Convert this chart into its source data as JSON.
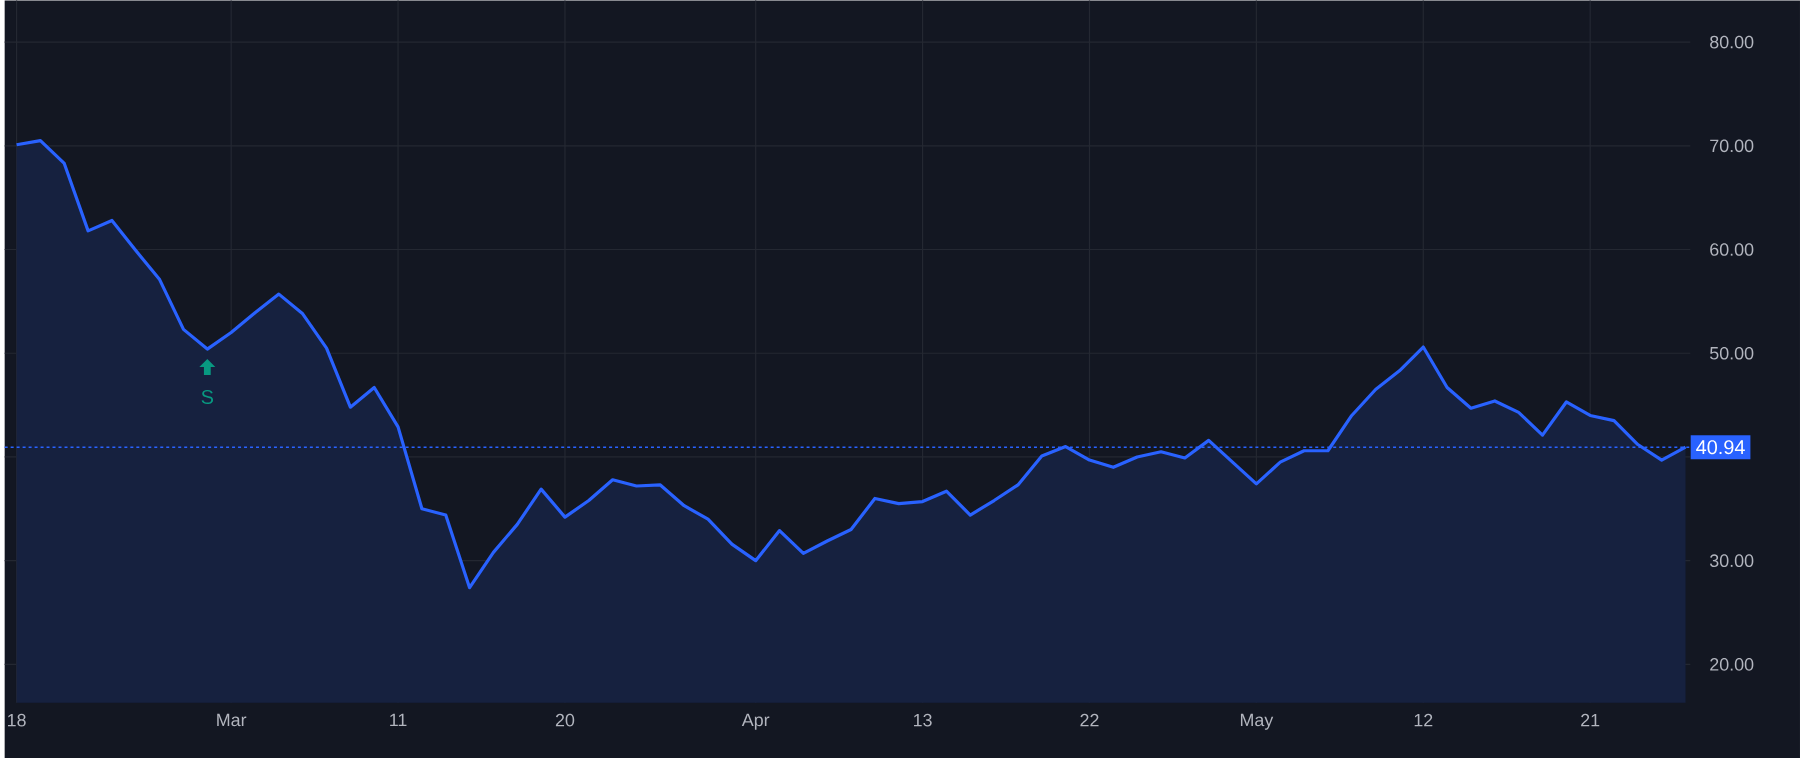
{
  "chart_data": {
    "type": "area",
    "categories": [
      "18",
      null,
      null,
      null,
      null,
      null,
      null,
      null,
      null,
      "Mar",
      null,
      null,
      null,
      null,
      null,
      null,
      "11",
      null,
      null,
      null,
      null,
      null,
      null,
      "20",
      null,
      null,
      null,
      null,
      null,
      null,
      null,
      "Apr",
      null,
      null,
      null,
      null,
      null,
      null,
      "13",
      null,
      null,
      null,
      null,
      null,
      null,
      "22",
      null,
      null,
      null,
      null,
      null,
      null,
      "May",
      null,
      null,
      null,
      null,
      null,
      null,
      "12",
      null,
      null,
      null,
      null,
      null,
      null,
      "21",
      null,
      null,
      null,
      null
    ],
    "series": [
      {
        "color": "#2962ff",
        "values": [
          70.1,
          70.5,
          68.3,
          61.8,
          62.8,
          59.9,
          57.1,
          52.3,
          50.4,
          52.0,
          53.9,
          55.7,
          53.8,
          50.5,
          44.8,
          46.7,
          42.9,
          35.0,
          34.4,
          27.4,
          30.8,
          33.5,
          36.9,
          34.2,
          35.8,
          37.8,
          37.2,
          37.3,
          35.3,
          34.0,
          31.6,
          30.0,
          32.9,
          30.7,
          31.9,
          33.0,
          36.0,
          35.5,
          35.7,
          36.7,
          34.4,
          35.8,
          37.3,
          40.1,
          41.0,
          39.7,
          39.0,
          40.0,
          40.5,
          39.9,
          41.6,
          39.5,
          37.4,
          39.5,
          40.6,
          40.6,
          44.0,
          46.5,
          48.3,
          50.6,
          46.7,
          44.7,
          45.4,
          44.3,
          42.1,
          45.3,
          44.0,
          43.5,
          41.2,
          39.7,
          40.94
        ]
      }
    ],
    "ylim": [
      16.3,
      84
    ],
    "yticks": [
      {
        "value": 20,
        "label": "20.00"
      },
      {
        "value": 30,
        "label": "30.00"
      },
      {
        "value": 40,
        "label": null
      },
      {
        "value": 50,
        "label": "50.00"
      },
      {
        "value": 60,
        "label": "60.00"
      },
      {
        "value": 70,
        "label": "70.00"
      },
      {
        "value": 80,
        "label": "80.00"
      }
    ],
    "grid": true,
    "ref_lines": [
      {
        "axis": "y",
        "value": 40.94,
        "label": "40.94",
        "color": "#2962ff",
        "line_style": "dotted"
      }
    ],
    "annotations": [
      {
        "text": "S",
        "y": 50.4
      }
    ]
  }
}
